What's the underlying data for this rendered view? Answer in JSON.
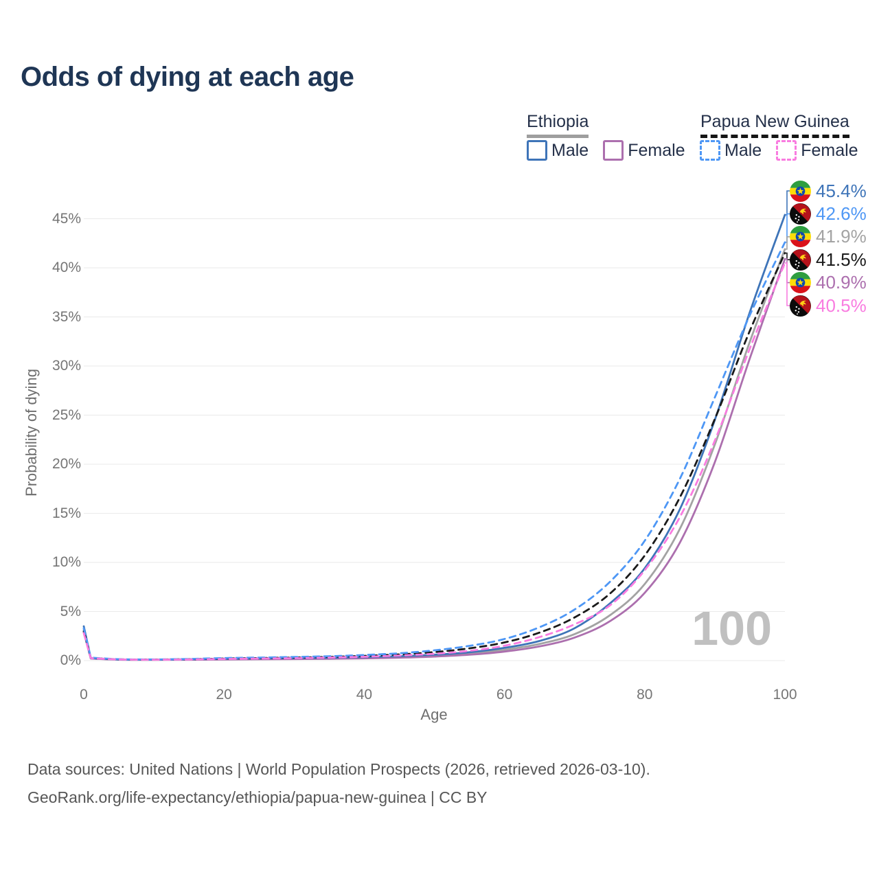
{
  "title": "Odds of dying at each age",
  "legend": {
    "groups": [
      {
        "name": "Ethiopia",
        "line_style": "solid",
        "underline_color": "#9E9E9E",
        "items": [
          {
            "label": "Male",
            "color": "#3E74B8"
          },
          {
            "label": "Female",
            "color": "#AC6FAE"
          }
        ]
      },
      {
        "name": "Papua New Guinea",
        "line_style": "dashed",
        "underline_color": "#151515",
        "items": [
          {
            "label": "Male",
            "color": "#4E97F5"
          },
          {
            "label": "Female",
            "color": "#F97CE0"
          }
        ]
      }
    ]
  },
  "chart_data": {
    "type": "line",
    "title": "Odds of dying at each age",
    "xlabel": "Age",
    "ylabel": "Probability of dying",
    "xlim": [
      0,
      100
    ],
    "ylim": [
      0,
      47
    ],
    "x_ticks": [
      0,
      20,
      40,
      60,
      80,
      100
    ],
    "y_ticks": [
      0,
      5,
      10,
      15,
      20,
      25,
      30,
      35,
      40,
      45
    ],
    "y_tick_suffix": "%",
    "grid": "horizontal",
    "legend_position": "top-right",
    "watermark": "100",
    "x": [
      0,
      1,
      5,
      10,
      15,
      20,
      25,
      30,
      35,
      40,
      45,
      50,
      55,
      60,
      65,
      70,
      75,
      80,
      85,
      90,
      95,
      100
    ],
    "series": [
      {
        "name": "Ethiopia Male",
        "flag": "ethiopia",
        "color": "#3E74B8",
        "dashed": false,
        "end_label": "45.4%",
        "end_value": 45.4,
        "values": [
          3.5,
          0.25,
          0.12,
          0.1,
          0.13,
          0.18,
          0.22,
          0.25,
          0.29,
          0.35,
          0.45,
          0.6,
          0.85,
          1.3,
          2.0,
          3.3,
          5.8,
          9.4,
          15.4,
          24.5,
          35.5,
          45.4
        ]
      },
      {
        "name": "Papua New Guinea Male",
        "flag": "papua-new-guinea",
        "color": "#4E97F5",
        "dashed": true,
        "end_label": "42.6%",
        "end_value": 42.6,
        "values": [
          3.3,
          0.3,
          0.15,
          0.12,
          0.17,
          0.26,
          0.31,
          0.37,
          0.45,
          0.57,
          0.75,
          1.05,
          1.5,
          2.2,
          3.4,
          5.2,
          8.0,
          12.2,
          18.5,
          26.8,
          35.2,
          42.6
        ]
      },
      {
        "name": "Ethiopia Both sexes",
        "flag": "ethiopia",
        "color": "#A3A3A3",
        "dashed": false,
        "end_label": "41.9%",
        "end_value": 41.9,
        "values": [
          3.2,
          0.23,
          0.11,
          0.09,
          0.11,
          0.15,
          0.18,
          0.21,
          0.24,
          0.29,
          0.37,
          0.5,
          0.72,
          1.1,
          1.7,
          2.7,
          4.6,
          7.8,
          13.4,
          22.0,
          32.5,
          41.9
        ]
      },
      {
        "name": "Papua New Guinea Both sexes",
        "flag": "papua-new-guinea",
        "color": "#1A1A1A",
        "dashed": true,
        "end_label": "41.5%",
        "end_value": 41.5,
        "values": [
          3.0,
          0.27,
          0.13,
          0.11,
          0.14,
          0.21,
          0.26,
          0.31,
          0.38,
          0.48,
          0.63,
          0.87,
          1.25,
          1.85,
          2.85,
          4.4,
          6.8,
          10.7,
          16.6,
          24.6,
          33.6,
          41.5
        ]
      },
      {
        "name": "Ethiopia Female",
        "flag": "ethiopia",
        "color": "#AC6FAE",
        "dashed": false,
        "end_label": "40.9%",
        "end_value": 40.9,
        "values": [
          2.9,
          0.21,
          0.1,
          0.08,
          0.09,
          0.12,
          0.14,
          0.16,
          0.19,
          0.23,
          0.3,
          0.41,
          0.6,
          0.92,
          1.45,
          2.35,
          4.0,
          6.9,
          12.0,
          20.2,
          30.8,
          40.9
        ]
      },
      {
        "name": "Papua New Guinea Female",
        "flag": "papua-new-guinea",
        "color": "#F97CE0",
        "dashed": true,
        "end_label": "40.5%",
        "end_value": 40.5,
        "values": [
          2.8,
          0.25,
          0.12,
          0.1,
          0.12,
          0.17,
          0.21,
          0.25,
          0.31,
          0.39,
          0.52,
          0.7,
          1.0,
          1.52,
          2.4,
          3.7,
          5.6,
          9.2,
          14.6,
          22.4,
          31.8,
          40.5
        ]
      }
    ]
  },
  "footer": {
    "line1": "Data sources: United Nations | World Population Prospects (2026, retrieved 2026-03-10).",
    "line2": "GeoRank.org/life-expectancy/ethiopia/papua-new-guinea | CC BY"
  }
}
